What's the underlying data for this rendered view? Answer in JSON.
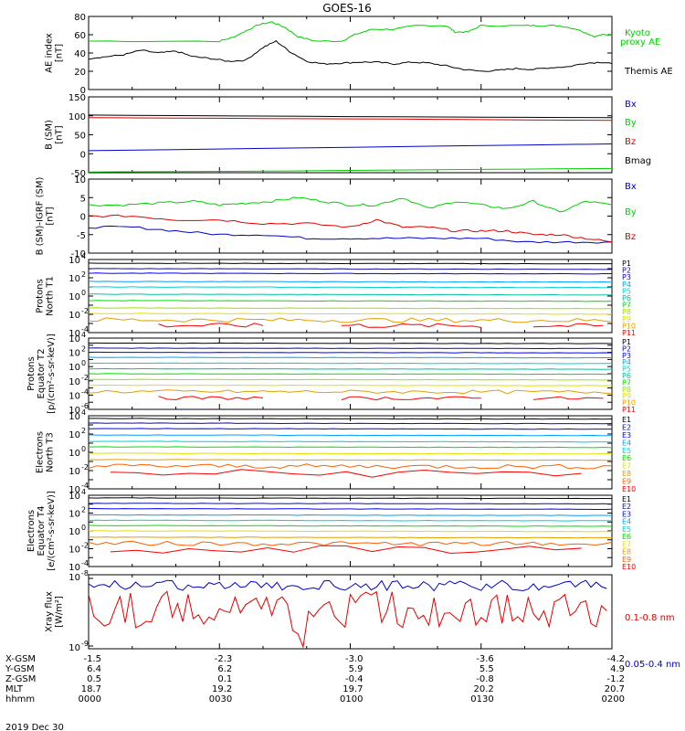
{
  "title": "GOES-16",
  "date_label": "2019 Dec 30",
  "colors": {
    "black": "#000000",
    "red": "#e00000",
    "green": "#00d000",
    "blue": "#0000d0",
    "p": [
      "#000000",
      "#1010a0",
      "#0000ff",
      "#00a0ff",
      "#00d0d0",
      "#00c0a0",
      "#00e000",
      "#a0e000",
      "#e0e000",
      "#e0a000",
      "#ff0000"
    ],
    "e": [
      "#000000",
      "#1010a0",
      "#0000ff",
      "#00a0ff",
      "#00d0d0",
      "#00e000",
      "#e0e000",
      "#e0a000",
      "#ff6000",
      "#ff0000"
    ]
  },
  "orbit_table": {
    "labels": [
      "X-GSM",
      "Y-GSM",
      "Z-GSM",
      "MLT",
      "hhmm"
    ],
    "columns": [
      [
        "-1.5",
        "6.4",
        "0.5",
        "18.7",
        "0000"
      ],
      [
        "-2.3",
        "6.2",
        "0.1",
        "19.2",
        "0030"
      ],
      [
        "-3.0",
        "5.9",
        "-0.4",
        "19.7",
        "0100"
      ],
      [
        "-3.6",
        "5.5",
        "-0.8",
        "20.2",
        "0130"
      ],
      [
        "-4.2",
        "4.9",
        "-1.2",
        "20.7",
        "0200"
      ]
    ]
  },
  "chart_data": [
    {
      "type": "line",
      "ylabel": "AE index [nT]",
      "ylim": [
        0,
        80
      ],
      "yticks": [
        "0",
        "20",
        "40",
        "60",
        "80"
      ],
      "x_range_min": [
        0,
        120
      ],
      "series": [
        {
          "name": "Kyoto proxy AE",
          "color": "#00d000",
          "x": [
            0,
            30,
            33,
            36,
            39,
            42,
            45,
            48,
            52,
            58,
            61,
            65,
            70,
            75,
            82,
            84,
            87,
            90,
            100,
            104,
            108,
            112,
            114,
            116,
            118,
            120
          ],
          "y": [
            53,
            53,
            57,
            64,
            71,
            74,
            68,
            58,
            53,
            53,
            60,
            66,
            66,
            70,
            70,
            63,
            63,
            70,
            70,
            70,
            70,
            66,
            62,
            58,
            60,
            60
          ]
        },
        {
          "name": "Themis AE",
          "color": "#000000",
          "x": [
            0,
            4,
            8,
            12,
            16,
            20,
            24,
            28,
            32,
            36,
            40,
            43,
            46,
            50,
            54,
            58,
            62,
            66,
            70,
            74,
            78,
            82,
            86,
            90,
            94,
            98,
            102,
            106,
            110,
            114,
            118,
            120
          ],
          "y": [
            34,
            36,
            38,
            43,
            40,
            42,
            36,
            34,
            31,
            32,
            46,
            53,
            42,
            31,
            28,
            29,
            30,
            30,
            28,
            30,
            29,
            26,
            22,
            20,
            21,
            23,
            22,
            24,
            25,
            29,
            30,
            28
          ]
        }
      ]
    },
    {
      "type": "line",
      "ylabel": "B (SM) [nT]",
      "ylim": [
        -50,
        150
      ],
      "yticks": [
        "-50",
        "0",
        "50",
        "100",
        "150"
      ],
      "series": [
        {
          "name": "Bx",
          "color": "#0000d0",
          "x": [
            0,
            120
          ],
          "y": [
            8,
            26
          ]
        },
        {
          "name": "By",
          "color": "#00d000",
          "x": [
            0,
            40,
            80,
            120
          ],
          "y": [
            -48,
            -46,
            -42,
            -39
          ]
        },
        {
          "name": "Bz",
          "color": "#e00000",
          "x": [
            0,
            60,
            120
          ],
          "y": [
            95,
            92,
            88
          ]
        },
        {
          "name": "Bmag",
          "color": "#000000",
          "x": [
            0,
            60,
            120
          ],
          "y": [
            102,
            98,
            95
          ]
        }
      ]
    },
    {
      "type": "line",
      "ylabel": "B (SM)-IGRF (SM) [nT]",
      "ylim": [
        -10,
        10
      ],
      "yticks": [
        "-10",
        "-5",
        "0",
        "5",
        "10"
      ],
      "series": [
        {
          "name": "Bx",
          "color": "#0000d0",
          "x": [
            0,
            10,
            20,
            30,
            40,
            50,
            60,
            70,
            80,
            90,
            100,
            110,
            120
          ],
          "y": [
            -3,
            -3,
            -4,
            -5,
            -5,
            -6,
            -6,
            -6,
            -6,
            -6,
            -7,
            -7,
            -7
          ]
        },
        {
          "name": "By",
          "color": "#00d000",
          "x": [
            0,
            8,
            16,
            24,
            30,
            36,
            42,
            48,
            54,
            60,
            66,
            72,
            78,
            84,
            90,
            96,
            102,
            108,
            114,
            120
          ],
          "y": [
            3,
            3,
            3.5,
            4,
            3,
            3.5,
            4,
            5,
            4,
            3,
            3,
            5,
            2,
            4,
            3,
            2,
            4,
            1,
            4,
            3
          ]
        },
        {
          "name": "Bz",
          "color": "#e00000",
          "x": [
            0,
            10,
            20,
            30,
            40,
            50,
            60,
            66,
            72,
            78,
            84,
            90,
            96,
            102,
            108,
            114,
            120
          ],
          "y": [
            0,
            0,
            -1,
            -1,
            -2,
            -2,
            -3,
            -1,
            -3,
            -3,
            -4,
            -4,
            -4,
            -5,
            -5,
            -6,
            -7
          ]
        }
      ]
    },
    {
      "type": "line",
      "ylabel": "Protons North T1",
      "log_range": [
        -4,
        4
      ],
      "yticks": [
        "10-4",
        "10-2",
        "100",
        "102",
        "104"
      ],
      "legend": [
        "P1",
        "P2",
        "P3",
        "P4",
        "P5",
        "P6",
        "P7",
        "P8",
        "P9",
        "P10",
        "P11"
      ],
      "levels_log": [
        3.6,
        3.0,
        2.5,
        1.6,
        1.0,
        0.2,
        -0.5,
        -1.3,
        -1.9,
        -2.6,
        -3.2
      ]
    },
    {
      "type": "line",
      "ylabel": "Protons Equator T2 [p/(cm2-s-sr-keV)]",
      "log_range": [
        -6,
        4
      ],
      "yticks": [
        "10-6",
        "10-4",
        "10-2",
        "100",
        "102",
        "104"
      ],
      "legend": [
        "P1",
        "P2",
        "P3",
        "P4",
        "P5",
        "P6",
        "P7",
        "P8",
        "P9",
        "P10",
        "P11"
      ],
      "levels_log": [
        3.3,
        2.6,
        2.0,
        1.3,
        0.5,
        -0.3,
        -1.0,
        -1.8,
        -2.6,
        -3.5,
        -4.4
      ]
    },
    {
      "type": "line",
      "ylabel": "Electrons North T3",
      "log_range": [
        -4,
        4
      ],
      "yticks": [
        "10-4",
        "10-2",
        "100",
        "102",
        "104"
      ],
      "legend": [
        "E1",
        "E2",
        "E3",
        "E4",
        "E5",
        "E6",
        "E7",
        "E8",
        "E9",
        "E10"
      ],
      "levels_log": [
        3.7,
        3.2,
        2.6,
        1.9,
        1.2,
        0.6,
        -0.1,
        -0.8,
        -1.5,
        -2.3
      ]
    },
    {
      "type": "line",
      "ylabel": "Electrons Equator T4 [e/(cm2-s-sr-keV)]",
      "log_range": [
        -4,
        4
      ],
      "yticks": [
        "10-4",
        "10-2",
        "100",
        "102",
        "104"
      ],
      "legend": [
        "E1",
        "E2",
        "E3",
        "E4",
        "E5",
        "E6",
        "E7",
        "E8",
        "E9",
        "E10"
      ],
      "levels_log": [
        3.7,
        3.1,
        2.5,
        1.8,
        1.2,
        0.6,
        0.0,
        -0.7,
        -1.4,
        -2.1
      ]
    },
    {
      "type": "line",
      "ylabel": "Xray flux [W/m2]",
      "log_range": [
        -9,
        -6
      ],
      "yticks": [
        "10-9",
        "10-8"
      ],
      "series": [
        {
          "name": "0.1-0.8 nm",
          "color": "#e00000"
        },
        {
          "name": "0.05-0.4 nm",
          "color": "#0000d0"
        }
      ]
    }
  ]
}
